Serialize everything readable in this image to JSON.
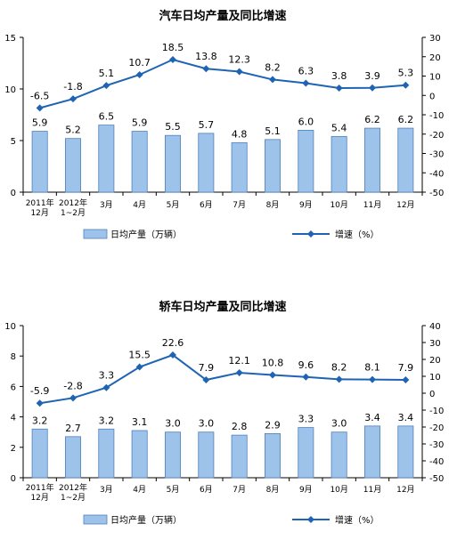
{
  "chart_data": [
    {
      "type": "bar+line",
      "title": "汽车日均产量及同比增速",
      "categories": [
        [
          "2011年",
          "12月"
        ],
        [
          "2012年",
          "1~2月"
        ],
        [
          "3月"
        ],
        [
          "4月"
        ],
        [
          "5月"
        ],
        [
          "6月"
        ],
        [
          "7月"
        ],
        [
          "8月"
        ],
        [
          "9月"
        ],
        [
          "10月"
        ],
        [
          "11月"
        ],
        [
          "12月"
        ]
      ],
      "series": [
        {
          "name": "日均产量（万辆）",
          "type": "bar",
          "axis": "left",
          "values": [
            5.9,
            5.2,
            6.5,
            5.9,
            5.5,
            5.7,
            4.8,
            5.1,
            6.0,
            5.4,
            6.2,
            6.2
          ],
          "labels": [
            "5.9",
            "5.2",
            "6.5",
            "5.9",
            "5.5",
            "5.7",
            "4.8",
            "5.1",
            "6.0",
            "5.4",
            "6.2",
            "6.2"
          ]
        },
        {
          "name": "增速（%）",
          "type": "line",
          "axis": "right",
          "values": [
            -6.5,
            -1.8,
            5.1,
            10.7,
            18.5,
            13.8,
            12.3,
            8.2,
            6.3,
            3.8,
            3.9,
            5.3
          ],
          "labels": [
            "-6.5",
            "-1.8",
            "5.1",
            "10.7",
            "18.5",
            "13.8",
            "12.3",
            "8.2",
            "6.3",
            "3.8",
            "3.9",
            "5.3"
          ]
        }
      ],
      "ylim_left": [
        0,
        15
      ],
      "yticks_left": [
        "0",
        "5",
        "10",
        "15"
      ],
      "ylim_right": [
        -50,
        30
      ],
      "yticks_right": [
        "-50",
        "-40",
        "-30",
        "-20",
        "-10",
        "0",
        "10",
        "20",
        "30"
      ],
      "legend_position": "bottom",
      "grid": false,
      "colors": {
        "bar": "#9ec3ea",
        "bar_edge": "#4f81bd",
        "line": "#1f64b4"
      }
    },
    {
      "type": "bar+line",
      "title": "轿车日均产量及同比增速",
      "categories": [
        [
          "2011年",
          "12月"
        ],
        [
          "2012年",
          "1~2月"
        ],
        [
          "3月"
        ],
        [
          "4月"
        ],
        [
          "5月"
        ],
        [
          "6月"
        ],
        [
          "7月"
        ],
        [
          "8月"
        ],
        [
          "9月"
        ],
        [
          "10月"
        ],
        [
          "11月"
        ],
        [
          "12月"
        ]
      ],
      "series": [
        {
          "name": "日均产量（万辆）",
          "type": "bar",
          "axis": "left",
          "values": [
            3.2,
            2.7,
            3.2,
            3.1,
            3.0,
            3.0,
            2.8,
            2.9,
            3.3,
            3.0,
            3.4,
            3.4
          ],
          "labels": [
            "3.2",
            "2.7",
            "3.2",
            "3.1",
            "3.0",
            "3.0",
            "2.8",
            "2.9",
            "3.3",
            "3.0",
            "3.4",
            "3.4"
          ]
        },
        {
          "name": "增速（%）",
          "type": "line",
          "axis": "right",
          "values": [
            -5.9,
            -2.8,
            3.3,
            15.5,
            22.6,
            7.9,
            12.1,
            10.8,
            9.6,
            8.2,
            8.1,
            7.9
          ],
          "labels": [
            "-5.9",
            "-2.8",
            "3.3",
            "15.5",
            "22.6",
            "7.9",
            "12.1",
            "10.8",
            "9.6",
            "8.2",
            "8.1",
            "7.9"
          ]
        }
      ],
      "ylim_left": [
        0,
        10
      ],
      "yticks_left": [
        "0",
        "2",
        "4",
        "6",
        "8",
        "10"
      ],
      "ylim_right": [
        -50,
        40
      ],
      "yticks_right": [
        "-50",
        "-40",
        "-30",
        "-20",
        "-10",
        "0",
        "10",
        "20",
        "30",
        "40"
      ],
      "legend_position": "bottom",
      "grid": false,
      "colors": {
        "bar": "#9ec3ea",
        "bar_edge": "#4f81bd",
        "line": "#1f64b4"
      }
    }
  ]
}
